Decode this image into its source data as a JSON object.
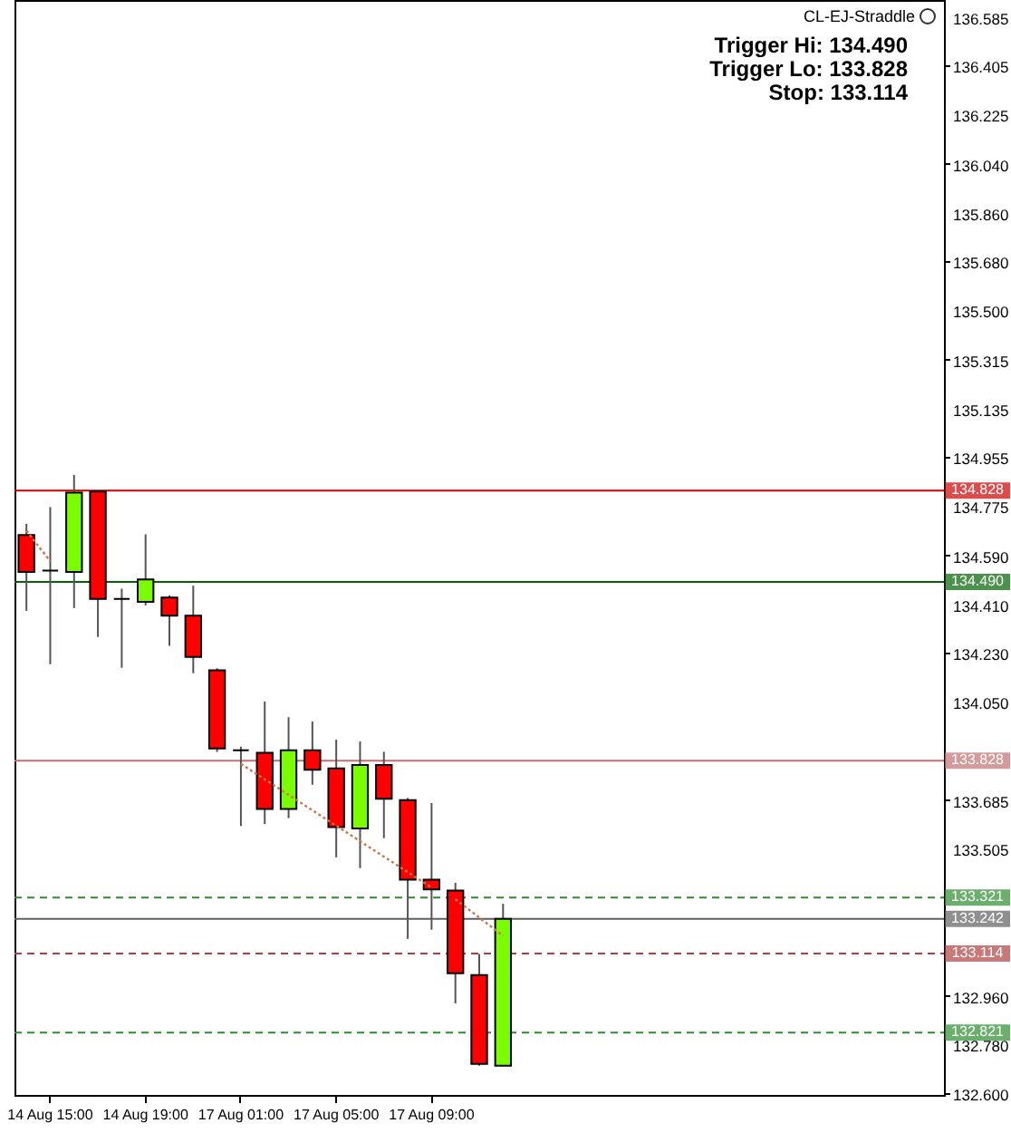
{
  "chart_data": {
    "type": "candlestick",
    "categories": [
      null,
      "14 Aug 15:00",
      null,
      null,
      null,
      "14 Aug 19:00",
      null,
      null,
      null,
      "17 Aug 01:00",
      null,
      null,
      null,
      "17 Aug 05:00",
      null,
      null,
      null,
      "17 Aug 09:00",
      null,
      null,
      null,
      null,
      null,
      null,
      null,
      null,
      null,
      null,
      null,
      null,
      null,
      null,
      null,
      null,
      null,
      null,
      null,
      null,
      null
    ],
    "ohlc": [
      [
        134.664,
        134.705,
        134.383,
        134.527
      ],
      [
        134.532,
        134.767,
        134.185,
        134.532
      ],
      [
        134.527,
        134.886,
        134.393,
        134.821
      ],
      [
        134.825,
        134.83,
        134.286,
        134.427
      ],
      [
        134.427,
        134.465,
        134.172,
        134.427
      ],
      [
        134.416,
        134.666,
        134.403,
        134.499
      ],
      [
        134.432,
        134.44,
        134.253,
        134.365
      ],
      [
        134.365,
        134.476,
        134.152,
        134.212
      ],
      [
        134.163,
        134.17,
        133.86,
        133.873
      ],
      [
        133.866,
        133.88,
        133.586,
        133.866
      ],
      [
        133.857,
        134.047,
        133.593,
        133.649
      ],
      [
        133.649,
        133.989,
        133.615,
        133.866
      ],
      [
        133.866,
        133.973,
        133.739,
        133.794
      ],
      [
        133.799,
        133.906,
        133.47,
        133.582
      ],
      [
        133.577,
        133.899,
        133.43,
        133.812
      ],
      [
        133.812,
        133.861,
        133.541,
        133.687
      ],
      [
        133.682,
        133.69,
        133.168,
        133.387
      ],
      [
        133.387,
        133.671,
        133.202,
        133.351
      ],
      [
        133.347,
        133.376,
        132.929,
        133.041
      ],
      [
        133.034,
        133.112,
        132.698,
        132.705
      ],
      [
        132.698,
        133.298,
        132.698,
        133.242
      ],
      null,
      null,
      null,
      null,
      null,
      null,
      null,
      null,
      null,
      null,
      null,
      null,
      null,
      null,
      null,
      null,
      null,
      null
    ],
    "colors": [
      "#ff0000",
      "#000000",
      "#7cfc00",
      "#ff0000",
      "#000000",
      "#7cfc00",
      "#ff0000",
      "#ff0000",
      "#ff0000",
      "#000000",
      "#ff0000",
      "#7cfc00",
      "#ff0000",
      "#ff0000",
      "#7cfc00",
      "#ff0000",
      "#ff0000",
      "#ff0000",
      "#ff0000",
      "#ff0000",
      "#7cfc00",
      null,
      null,
      null,
      null,
      null,
      null,
      null,
      null,
      null,
      null,
      null,
      null,
      null,
      null,
      null,
      null,
      null,
      null
    ],
    "series": [
      {
        "type": "line",
        "color": "#c87850",
        "values": [
          134.68,
          134.566,
          null,
          null,
          null,
          null,
          null,
          null,
          null,
          null,
          null,
          null,
          null,
          null,
          null,
          null,
          null,
          null,
          null,
          null,
          null,
          null,
          null,
          null,
          null,
          null,
          null,
          null,
          null,
          null,
          null,
          null,
          null,
          null,
          null,
          null,
          null,
          null,
          null
        ]
      },
      {
        "type": "line",
        "color": "#c87850",
        "values": [
          null,
          null,
          null,
          null,
          null,
          null,
          null,
          null,
          null,
          133.816,
          null,
          null,
          null,
          null,
          null,
          null,
          null,
          133.358,
          null,
          null,
          null,
          null,
          null,
          null,
          null,
          null,
          null,
          null,
          null,
          null,
          null,
          null,
          null,
          null,
          null,
          null,
          null,
          null,
          null
        ]
      },
      {
        "type": "line",
        "color": "#c87850",
        "values": [
          null,
          null,
          null,
          null,
          null,
          null,
          null,
          null,
          null,
          null,
          null,
          null,
          null,
          null,
          null,
          null,
          null,
          null,
          133.315,
          null,
          133.179,
          null,
          null,
          null,
          null,
          null,
          null,
          null,
          null,
          null,
          null,
          null,
          null,
          null,
          null,
          null,
          null,
          null,
          null
        ]
      }
    ],
    "line_style": "dotted",
    "marker": "none",
    "ylim": [
      132.59,
      136.645
    ],
    "yticks": [
      136.585,
      136.405,
      136.225,
      {
        "value": 136.04,
        "label": "136.040"
      },
      {
        "value": 135.86,
        "label": "135.860"
      },
      {
        "value": 135.68,
        "label": "135.680"
      },
      {
        "value": 135.5,
        "label": "135.500"
      },
      135.315,
      135.135,
      134.955,
      134.775,
      {
        "value": 134.59,
        "label": "134.590"
      },
      {
        "value": 134.41,
        "label": "134.410"
      },
      {
        "value": 134.23,
        "label": "134.230"
      },
      {
        "value": 134.05,
        "label": "134.050"
      },
      133.685,
      133.505,
      {
        "value": 132.96,
        "label": "132.960"
      },
      {
        "value": 132.78,
        "label": "132.780"
      },
      {
        "value": 132.6,
        "label": "132.600"
      }
    ],
    "ref_lines": [
      {
        "axis": "y",
        "value": 134.828,
        "label": "134.828",
        "color": "#cc0000",
        "line_style": "solid"
      },
      {
        "axis": "y",
        "value": 134.49,
        "label": "134.490",
        "color": "#006400",
        "line_style": "solid"
      },
      {
        "axis": "y",
        "value": 133.828,
        "label": "133.828",
        "color": "#c07070",
        "line_style": "solid"
      },
      {
        "axis": "y",
        "value": 133.321,
        "label": "133.321",
        "color": "#2e8b2e",
        "line_style": "dashed"
      },
      {
        "axis": "y",
        "value": 133.242,
        "label": "133.242",
        "color": "#606060",
        "line_style": "solid"
      },
      {
        "axis": "y",
        "value": 133.114,
        "label": "133.114",
        "color": "#b04040",
        "line_style": "dashed"
      },
      {
        "axis": "y",
        "value": 132.821,
        "label": "132.821",
        "color": "#2e8b2e",
        "line_style": "dashed"
      }
    ],
    "annotations": [
      "CL-EJ-Straddle",
      "Trigger Hi: 134.490",
      "Trigger Lo: 133.828",
      "Stop: 133.114"
    ],
    "grid": false
  }
}
